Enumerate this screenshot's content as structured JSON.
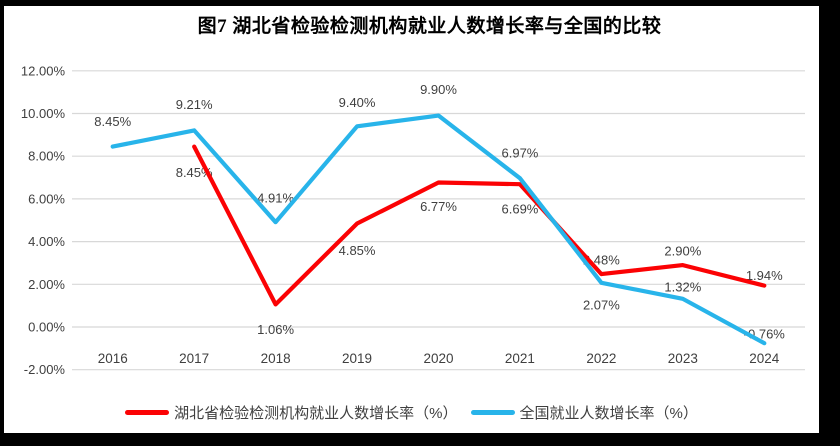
{
  "title": "图7 湖北省检验检测机构就业人数增长率与全国的比较",
  "frame_color": "#000000",
  "chart_data": {
    "type": "line",
    "categories": [
      "2016",
      "2017",
      "2018",
      "2019",
      "2020",
      "2021",
      "2022",
      "2023",
      "2024"
    ],
    "series": [
      {
        "name": "湖北省检验检测机构就业人数增长率（%）",
        "color": "#fb0204",
        "values": [
          null,
          8.45,
          1.06,
          4.85,
          6.77,
          6.69,
          2.48,
          2.9,
          1.94
        ],
        "labels": [
          "",
          "8.45%",
          "1.06%",
          "4.85%",
          "6.77%",
          "6.69%",
          "2.48%",
          "2.90%",
          "1.94%"
        ],
        "label_dy": [
          0,
          26,
          25,
          27,
          24,
          25,
          -14,
          -14,
          -10
        ]
      },
      {
        "name": "全国就业人数增长率（%）",
        "color": "#28b4ea",
        "values": [
          8.45,
          9.21,
          4.91,
          9.4,
          9.9,
          6.97,
          2.07,
          1.32,
          -0.76
        ],
        "labels": [
          "8.45%",
          "9.21%",
          "4.91%",
          "9.40%",
          "9.90%",
          "6.97%",
          "2.07%",
          "1.32%",
          "-0.76%"
        ],
        "label_dy": [
          -25,
          -26,
          -24,
          -24,
          -26,
          -25,
          22,
          -12,
          -9
        ]
      }
    ],
    "y_axis": {
      "min": -2,
      "max": 12,
      "step": 2,
      "tick_labels": [
        "12.00%",
        "10.00%",
        "8.00%",
        "6.00%",
        "4.00%",
        "2.00%",
        "0.00%",
        "-2.00%"
      ]
    },
    "xlabel": "",
    "ylabel": "",
    "grid": true,
    "grid_color": "#d8d8d8",
    "text_color": "#3f3f3f",
    "legend_position": "bottom"
  }
}
